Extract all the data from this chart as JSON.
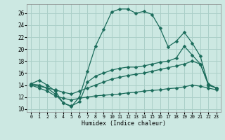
{
  "xlabel": "Humidex (Indice chaleur)",
  "xlim": [
    -0.5,
    23.5
  ],
  "ylim": [
    9.5,
    27.5
  ],
  "xticks": [
    0,
    1,
    2,
    3,
    4,
    5,
    6,
    7,
    8,
    9,
    10,
    11,
    12,
    13,
    14,
    15,
    16,
    17,
    18,
    19,
    20,
    21,
    22,
    23
  ],
  "yticks": [
    10,
    12,
    14,
    16,
    18,
    20,
    22,
    24,
    26
  ],
  "bg_color": "#cce8e2",
  "grid_color": "#aacfc8",
  "line_color": "#1a6b5a",
  "line1_y": [
    14.2,
    14.8,
    14.0,
    13.0,
    11.0,
    10.4,
    12.0,
    16.3,
    20.5,
    23.3,
    26.2,
    26.7,
    26.7,
    26.0,
    26.3,
    25.8,
    23.5,
    20.4,
    21.3,
    22.8,
    21.0,
    18.8,
    14.0,
    13.5
  ],
  "line2_y": [
    14.2,
    14.0,
    13.5,
    12.5,
    11.0,
    10.5,
    11.2,
    14.5,
    15.5,
    16.0,
    16.5,
    16.8,
    17.0,
    17.0,
    17.2,
    17.5,
    17.8,
    18.0,
    18.5,
    20.5,
    19.0,
    17.5,
    14.0,
    13.5
  ],
  "line3_y": [
    14.0,
    13.8,
    13.5,
    13.2,
    12.8,
    12.5,
    13.0,
    13.5,
    14.0,
    14.5,
    15.0,
    15.3,
    15.6,
    15.8,
    16.0,
    16.3,
    16.6,
    16.9,
    17.2,
    17.5,
    18.0,
    17.5,
    14.2,
    13.5
  ],
  "line4_y": [
    14.0,
    13.5,
    13.0,
    12.2,
    11.8,
    11.5,
    11.8,
    12.0,
    12.2,
    12.3,
    12.4,
    12.5,
    12.7,
    12.8,
    13.0,
    13.1,
    13.2,
    13.4,
    13.5,
    13.7,
    14.0,
    13.8,
    13.5,
    13.2
  ]
}
